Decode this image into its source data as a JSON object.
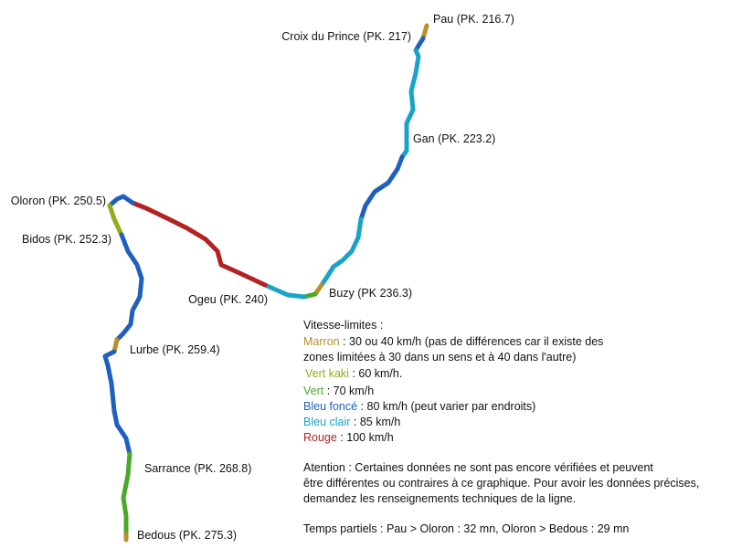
{
  "stations": [
    "Pau (PK. 216.7)",
    "Croix du Prince (PK. 217)",
    "Gan (PK. 223.2)",
    "Buzy (PK 236.3)",
    "Ogeu (PK. 240)",
    "Oloron (PK. 250.5)",
    "Bidos (PK. 252.3)",
    "Lurbe (PK. 259.4)",
    "Sarrance (PK. 268.8)",
    "Bedous (PK. 275.3)"
  ],
  "legend": {
    "title": "Vitesse-limites :",
    "items": [
      {
        "name": "Marron",
        "text": [
          ": 30 ou 40 km/h (pas de différences car il existe des",
          "zones limitées à 30 dans un sens et à 40 dans l'autre)"
        ]
      },
      {
        "name": "Vert kaki",
        "text": [
          ": 60 km/h."
        ]
      },
      {
        "name": "Vert",
        "text": [
          ": 70 km/h"
        ]
      },
      {
        "name": "Bleu foncé",
        "text": [
          ": 80 km/h (peut varier par endroits)"
        ]
      },
      {
        "name": "Bleu clair",
        "text": [
          ": 85 km/h"
        ]
      },
      {
        "name": "Rouge",
        "text": [
          ": 100 km/h"
        ]
      }
    ]
  },
  "note": [
    "Atention : Certaines données ne sont pas encore vérifiées et peuvent",
    "être différentes ou contraires à ce graphique. Pour avoir les données précises,",
    "demandez les renseignements techniques de la ligne."
  ],
  "times": "Temps partiels : Pau > Oloron : 32 mn, Oloron > Bedous : 29 mn"
}
